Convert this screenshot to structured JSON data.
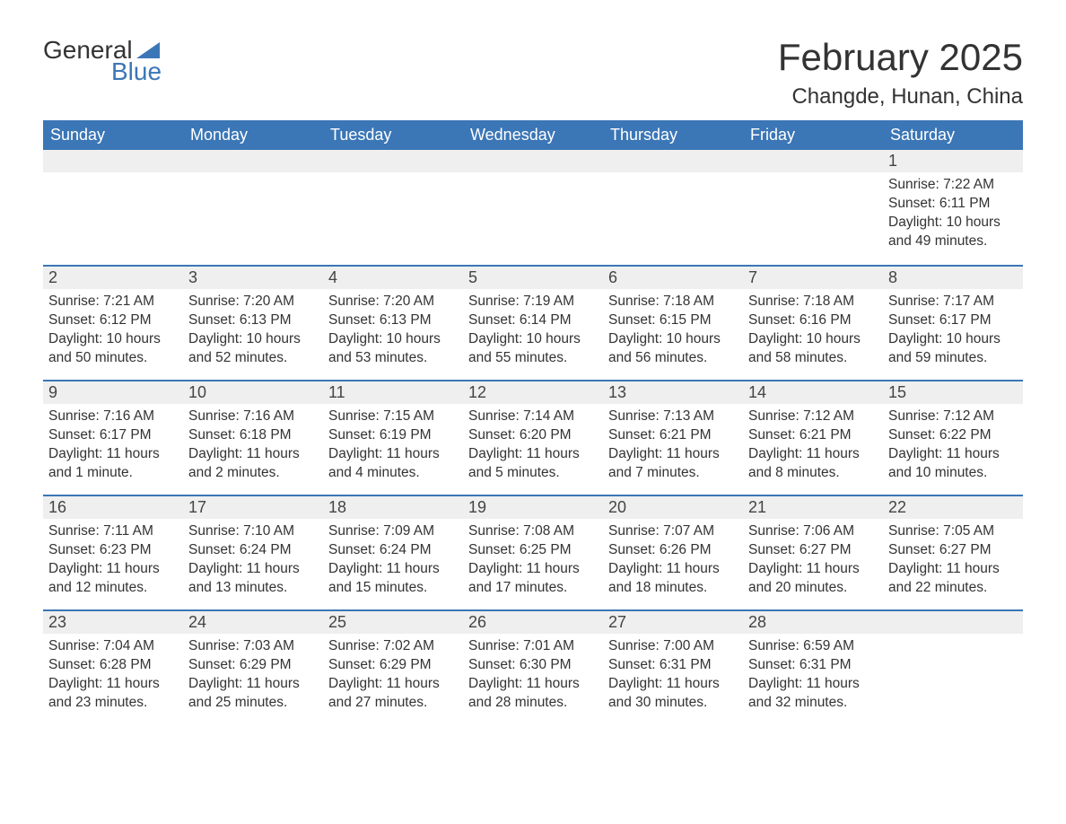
{
  "brand": {
    "text1": "General",
    "text2": "Blue",
    "color_text": "#333333",
    "color_accent": "#3b76b6"
  },
  "header": {
    "month_title": "February 2025",
    "location": "Changde, Hunan, China"
  },
  "style": {
    "header_bg": "#3b76b6",
    "header_text": "#ffffff",
    "daynum_bg": "#efefef",
    "row_border": "#3b76b6",
    "body_text": "#333333",
    "background": "#ffffff",
    "title_fontsize": 42,
    "location_fontsize": 24,
    "dayheader_fontsize": 18,
    "daynum_fontsize": 18,
    "body_fontsize": 15.5
  },
  "days_of_week": [
    "Sunday",
    "Monday",
    "Tuesday",
    "Wednesday",
    "Thursday",
    "Friday",
    "Saturday"
  ],
  "weeks": [
    [
      {
        "num": "",
        "sunrise": "",
        "sunset": "",
        "daylight": ""
      },
      {
        "num": "",
        "sunrise": "",
        "sunset": "",
        "daylight": ""
      },
      {
        "num": "",
        "sunrise": "",
        "sunset": "",
        "daylight": ""
      },
      {
        "num": "",
        "sunrise": "",
        "sunset": "",
        "daylight": ""
      },
      {
        "num": "",
        "sunrise": "",
        "sunset": "",
        "daylight": ""
      },
      {
        "num": "",
        "sunrise": "",
        "sunset": "",
        "daylight": ""
      },
      {
        "num": "1",
        "sunrise": "Sunrise: 7:22 AM",
        "sunset": "Sunset: 6:11 PM",
        "daylight": "Daylight: 10 hours and 49 minutes."
      }
    ],
    [
      {
        "num": "2",
        "sunrise": "Sunrise: 7:21 AM",
        "sunset": "Sunset: 6:12 PM",
        "daylight": "Daylight: 10 hours and 50 minutes."
      },
      {
        "num": "3",
        "sunrise": "Sunrise: 7:20 AM",
        "sunset": "Sunset: 6:13 PM",
        "daylight": "Daylight: 10 hours and 52 minutes."
      },
      {
        "num": "4",
        "sunrise": "Sunrise: 7:20 AM",
        "sunset": "Sunset: 6:13 PM",
        "daylight": "Daylight: 10 hours and 53 minutes."
      },
      {
        "num": "5",
        "sunrise": "Sunrise: 7:19 AM",
        "sunset": "Sunset: 6:14 PM",
        "daylight": "Daylight: 10 hours and 55 minutes."
      },
      {
        "num": "6",
        "sunrise": "Sunrise: 7:18 AM",
        "sunset": "Sunset: 6:15 PM",
        "daylight": "Daylight: 10 hours and 56 minutes."
      },
      {
        "num": "7",
        "sunrise": "Sunrise: 7:18 AM",
        "sunset": "Sunset: 6:16 PM",
        "daylight": "Daylight: 10 hours and 58 minutes."
      },
      {
        "num": "8",
        "sunrise": "Sunrise: 7:17 AM",
        "sunset": "Sunset: 6:17 PM",
        "daylight": "Daylight: 10 hours and 59 minutes."
      }
    ],
    [
      {
        "num": "9",
        "sunrise": "Sunrise: 7:16 AM",
        "sunset": "Sunset: 6:17 PM",
        "daylight": "Daylight: 11 hours and 1 minute."
      },
      {
        "num": "10",
        "sunrise": "Sunrise: 7:16 AM",
        "sunset": "Sunset: 6:18 PM",
        "daylight": "Daylight: 11 hours and 2 minutes."
      },
      {
        "num": "11",
        "sunrise": "Sunrise: 7:15 AM",
        "sunset": "Sunset: 6:19 PM",
        "daylight": "Daylight: 11 hours and 4 minutes."
      },
      {
        "num": "12",
        "sunrise": "Sunrise: 7:14 AM",
        "sunset": "Sunset: 6:20 PM",
        "daylight": "Daylight: 11 hours and 5 minutes."
      },
      {
        "num": "13",
        "sunrise": "Sunrise: 7:13 AM",
        "sunset": "Sunset: 6:21 PM",
        "daylight": "Daylight: 11 hours and 7 minutes."
      },
      {
        "num": "14",
        "sunrise": "Sunrise: 7:12 AM",
        "sunset": "Sunset: 6:21 PM",
        "daylight": "Daylight: 11 hours and 8 minutes."
      },
      {
        "num": "15",
        "sunrise": "Sunrise: 7:12 AM",
        "sunset": "Sunset: 6:22 PM",
        "daylight": "Daylight: 11 hours and 10 minutes."
      }
    ],
    [
      {
        "num": "16",
        "sunrise": "Sunrise: 7:11 AM",
        "sunset": "Sunset: 6:23 PM",
        "daylight": "Daylight: 11 hours and 12 minutes."
      },
      {
        "num": "17",
        "sunrise": "Sunrise: 7:10 AM",
        "sunset": "Sunset: 6:24 PM",
        "daylight": "Daylight: 11 hours and 13 minutes."
      },
      {
        "num": "18",
        "sunrise": "Sunrise: 7:09 AM",
        "sunset": "Sunset: 6:24 PM",
        "daylight": "Daylight: 11 hours and 15 minutes."
      },
      {
        "num": "19",
        "sunrise": "Sunrise: 7:08 AM",
        "sunset": "Sunset: 6:25 PM",
        "daylight": "Daylight: 11 hours and 17 minutes."
      },
      {
        "num": "20",
        "sunrise": "Sunrise: 7:07 AM",
        "sunset": "Sunset: 6:26 PM",
        "daylight": "Daylight: 11 hours and 18 minutes."
      },
      {
        "num": "21",
        "sunrise": "Sunrise: 7:06 AM",
        "sunset": "Sunset: 6:27 PM",
        "daylight": "Daylight: 11 hours and 20 minutes."
      },
      {
        "num": "22",
        "sunrise": "Sunrise: 7:05 AM",
        "sunset": "Sunset: 6:27 PM",
        "daylight": "Daylight: 11 hours and 22 minutes."
      }
    ],
    [
      {
        "num": "23",
        "sunrise": "Sunrise: 7:04 AM",
        "sunset": "Sunset: 6:28 PM",
        "daylight": "Daylight: 11 hours and 23 minutes."
      },
      {
        "num": "24",
        "sunrise": "Sunrise: 7:03 AM",
        "sunset": "Sunset: 6:29 PM",
        "daylight": "Daylight: 11 hours and 25 minutes."
      },
      {
        "num": "25",
        "sunrise": "Sunrise: 7:02 AM",
        "sunset": "Sunset: 6:29 PM",
        "daylight": "Daylight: 11 hours and 27 minutes."
      },
      {
        "num": "26",
        "sunrise": "Sunrise: 7:01 AM",
        "sunset": "Sunset: 6:30 PM",
        "daylight": "Daylight: 11 hours and 28 minutes."
      },
      {
        "num": "27",
        "sunrise": "Sunrise: 7:00 AM",
        "sunset": "Sunset: 6:31 PM",
        "daylight": "Daylight: 11 hours and 30 minutes."
      },
      {
        "num": "28",
        "sunrise": "Sunrise: 6:59 AM",
        "sunset": "Sunset: 6:31 PM",
        "daylight": "Daylight: 11 hours and 32 minutes."
      },
      {
        "num": "",
        "sunrise": "",
        "sunset": "",
        "daylight": ""
      }
    ]
  ]
}
